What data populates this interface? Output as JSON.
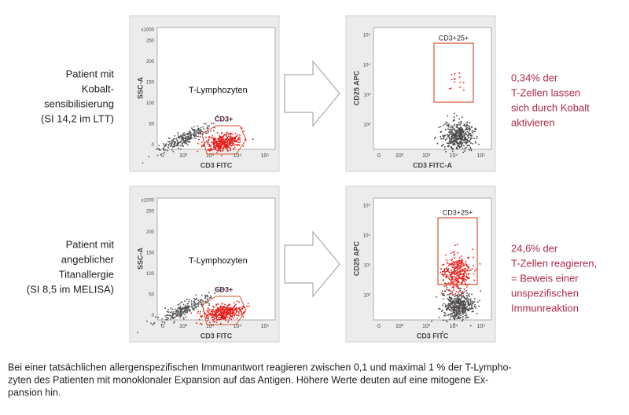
{
  "rows": [
    {
      "patient": [
        "Patient mit",
        "Kobalt-",
        "sensibilisierung",
        "(SI 14,2 im LTT)"
      ],
      "plot1": {
        "y_label": "SSC-A",
        "x_label": "CD3 FITC",
        "y_ticks": [
          "x1000",
          "250",
          "200",
          "150",
          "100",
          "50",
          "0"
        ],
        "x_ticks": [
          "0",
          "10²",
          "10³",
          "10⁴",
          "10⁵"
        ],
        "population": "T-Lymphozyten",
        "gate": "CD3+"
      },
      "plot2": {
        "y_label": "CD25 APC",
        "x_label": "CD3 FITC-A",
        "y_ticks": [
          "10⁵",
          "10⁴",
          "10³",
          "10²"
        ],
        "x_ticks": [
          "0",
          "10²",
          "10³",
          "10⁴",
          "10⁵"
        ],
        "gate": "CD3+25+"
      },
      "result": [
        "0,34% der",
        "T-Zellen lassen",
        "sich durch Kobalt",
        "aktivieren"
      ]
    },
    {
      "patient": [
        "Patient mit",
        "angeblicher",
        "Titanallergie",
        "(SI 8,5 im MELISA)"
      ],
      "plot1": {
        "y_label": "SSC-A",
        "x_label": "CD3 FITC",
        "y_ticks": [
          "x1000",
          "250",
          "200",
          "150",
          "100",
          "50",
          "0"
        ],
        "x_ticks": [
          "0",
          "10²",
          "10³",
          "10⁴",
          "10⁵"
        ],
        "population": "T-Lymphozyten",
        "gate": "CD3+"
      },
      "plot2": {
        "y_label": "CD25 APC",
        "x_label": "CD3 FITC",
        "y_ticks": [
          "10⁵",
          "10⁴",
          "10³",
          "10²"
        ],
        "x_ticks": [
          "0",
          "10²",
          "10³",
          "10⁴",
          "10⁵"
        ],
        "gate": "CD3+25+"
      },
      "result": [
        "24,6% der",
        "T-Zellen reagieren,",
        "= Beweis einer",
        "unspezifischen",
        "Immunreaktion"
      ]
    }
  ],
  "caption": [
    "Bei einer tatsächlichen allergenspezifischen Immunantwort reagieren zwischen 0,1 und maximal 1 % der T-Lympho-",
    "zyten des Patienten mit monoklonaler Expansion auf das Antigen. Höhere Werte deuten auf eine mitogene Ex-",
    "pansion hin."
  ]
}
